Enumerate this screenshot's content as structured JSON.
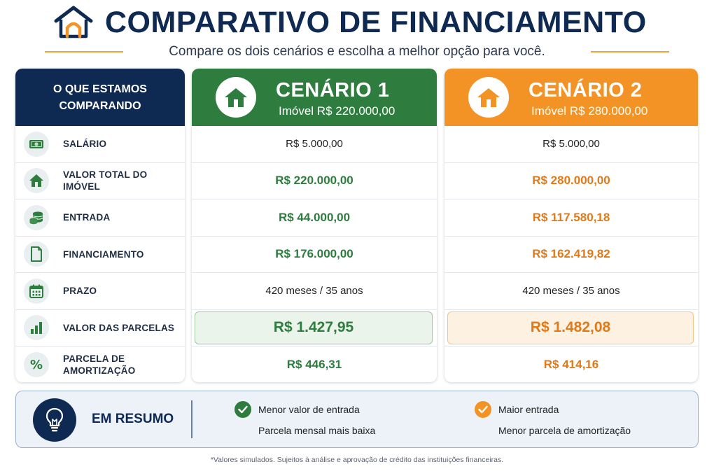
{
  "header": {
    "title": "COMPARATIVO DE FINANCIAMENTO",
    "subtitle": "Compare os dois cenários e escolha a melhor opção para você.",
    "logo_icon": "house-arch-icon"
  },
  "colors": {
    "navy": "#0f2a52",
    "green": "#2e7d3e",
    "orange": "#f39325",
    "accent_line": "#f2a23a"
  },
  "comparison": {
    "heading_line1": "O QUE ESTAMOS",
    "heading_line2": "COMPARANDO",
    "rows": [
      {
        "icon": "money-bill-icon",
        "label": "SALÁRIO"
      },
      {
        "icon": "house-icon",
        "label": "VALOR TOTAL DO IMÓVEL"
      },
      {
        "icon": "coins-stack-icon",
        "label": "ENTRADA"
      },
      {
        "icon": "document-icon",
        "label": "FINANCIAMENTO"
      },
      {
        "icon": "calendar-icon",
        "label": "PRAZO"
      },
      {
        "icon": "bar-chart-icon",
        "label": "VALOR DAS PARCELAS"
      },
      {
        "icon": "percent-icon",
        "label_line1": "PARCELA DE",
        "label_line2": "AMORTIZAÇÃO"
      }
    ]
  },
  "scenario1": {
    "title": "CENÁRIO 1",
    "subtitle": "Imóvel R$ 220.000,00",
    "icon": "house-icon",
    "values": [
      "R$ 5.000,00",
      "R$ 220.000,00",
      "R$ 44.000,00",
      "R$ 176.000,00",
      "420 meses / 35 anos",
      "R$ 1.427,95",
      "R$ 446,31"
    ]
  },
  "scenario2": {
    "title": "CENÁRIO 2",
    "subtitle": "Imóvel R$ 280.000,00",
    "icon": "house-icon",
    "values": [
      "R$ 5.000,00",
      "R$ 280.000,00",
      "R$ 117.580,18",
      "R$ 162.419,82",
      "420 meses / 35 anos",
      "R$ 1.482,08",
      "R$ 414,16"
    ]
  },
  "summary": {
    "icon": "lightbulb-icon",
    "title": "EM RESUMO",
    "scenario1": {
      "icon": "check-icon",
      "line1": "Menor valor de entrada",
      "line2": "Parcela mensal mais baixa"
    },
    "scenario2": {
      "icon": "check-icon",
      "line1": "Maior entrada",
      "line2": "Menor parcela de amortização"
    }
  },
  "footnote": "*Valores simulados. Sujeitos à análise e aprovação de crédito das instituições financeiras."
}
